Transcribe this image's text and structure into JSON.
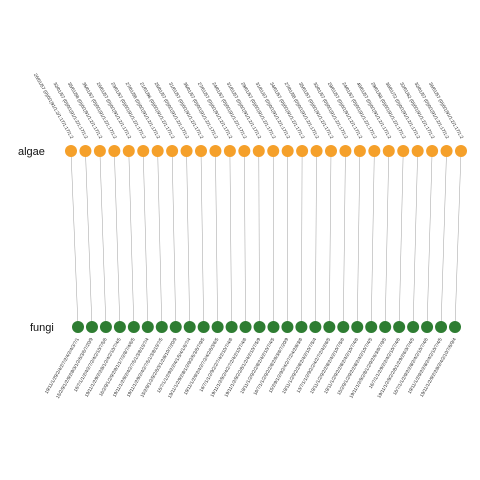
{
  "rows": {
    "top_label": "algae",
    "bottom_label": "fungi"
  },
  "colors": {
    "top_node": "#f5a02a",
    "bottom_node": "#2e7d32",
    "edge": "#9e9e9e"
  },
  "top_nodes": [
    "26/01/57 (0)|0/1|91/1:2/1:17/1:17/1:2",
    "32/01/57 (0)|0/1|91/1:2/1:17/1:2",
    "35/01/58 (0)|0/1|91/1:2/1:17/1:2",
    "35/01/57 (0)|0/1|91/1:2/1:17/1:2",
    "26/01/57 (0)|0/1|91/1:2/1:17/1:2",
    "23/01/57 (0)|0/1|91/1:2/1:17/1:2",
    "27/01/58 (0)|0/1|91/1:2/1:17/1:2",
    "21/01/96 (0)|0/1|91/1:2/1:17/1:2",
    "25/01/57 (0)|0/1|91/1:2/1:17/1:2",
    "31/01/57 (0)|0/1|91/1:2/1:17/1:2",
    "35/01/57 (0)|0/1|91/1:2/1:17/1:2",
    "27/01/57 (0)|0/1|91/1:2/1:17/1:2",
    "24/01/57 (0)|0/1|91/1:2/1:17/1:2",
    "31/01/57 (0)|0/1|91/1:2/1:17/1:2",
    "29/01/57 (0)|0/1|91/1:2/1:17/1:2",
    "31/01/67 (0)|0/1|91/1:2/1:17/1:2",
    "34/01/57 (0)|0/1|91/1:2/1:17/1:2",
    "27/01/58 (0)|0/1|91/1:2/1:17/1:2",
    "35/01/57 (0)|0/1|91/1:2/1:17/1:2",
    "32/01/57 (0)|0/1|91/1:2/1:17/1:2",
    "29/01/57 (0)|0/1|91/1:2/1:17/1:2",
    "24/01/57 (0)|0/1|91/1:2/1:17/1:2",
    "40/01/57 (0)|0/1|91/1:2/1:17/1:2",
    "29/01/58 (0)|0/1|91/1:2/1:17/1:2",
    "30/01/72 (0)|0/1|91/1:2/1:17/1:2",
    "32/01/62 (0)|0/1|91/1:2/1:17/1:2",
    "32/01/57 (0)|0/1|91/1:2/1:17/1:2",
    "36/01/57 (0)|0/1|91/1:2/1:17/1:2"
  ],
  "bottom_nodes": [
    "19/11/1/29/2/4/2/7/2/4/2/4/3/7/1",
    "15/2/9/1/2/9/2/8/3/1/2/6/3/6/7/20/9",
    "16/7/1/1/2/4/2/7/2/4/2/10/7/5/6",
    "19/11/1/2/9/2/2/8/1/2/4/2/10/7/4/5",
    "16/2/9/1/2/9/2/8/1/1/7/2/8/7/4/6/5",
    "19/11/1/2/9/2/4/2/7/5/1/3/8/10/7/4",
    "19/11/1/2/9/2/4/2/7/5/1/3/8/10/7/5",
    "15/2/9/1/2/9/2/6/3/1/2/8/10/7/20/9",
    "16/7/1/1/2/9/2/2/4/1/5/4/1/6/7/4",
    "19/11/1/2/9/2/8/1/2/9/2/6/3/6/7/9/5",
    "19/11/1/2/9/2/4/2/7/2/4/2/6/3/6/5",
    "16/7/1/1/2/9/2/2/7/4/2/10/7/4/6",
    "19/11/1/2/9/2/4/2/7/2/4/2/10/7/4/6",
    "19/11/1/2/9/2/2/8/1/2/4/2/10/7/5/9",
    "19/11/1/2/9/2/2/8/2/4/2/10/7/4/5",
    "16/7/1/1/2/9/2/2/8/2/6/3/6/7/20/9",
    "15/2/9/1/2/9/2/4/2/7/2/4/2/8/3/6",
    "19/11/1/2/9/2/2/8/2/4/2/10/7/5/4",
    "13/7/1/1/2/9/2/2/4/2/7/2/4/2/6/5",
    "19/11/1/2/9/2/2/8/2/4/2/10/7/5/6",
    "19/11/1/2/9/2/2/8/2/4/2/10/7/4/6",
    "15/2/9/1/2/9/2/2/8/2/4/2/10/7/4/5",
    "19/11/1/2/9/2/8/1/2/9/2/6/3/6/7/9/5",
    "16/7/1/1/2/9/2/2/4/2/10/7/4/6",
    "19/11/1/2/9/2/2/8/1/2/9/2/6/3/7/4/5",
    "16/7/1/1/2/9/2/2/8/2/4/2/10/7/4/6",
    "19/11/1/2/9/2/2/8/2/4/2/10/7/4/5",
    "19/11/1/2/9/2/2/8/2/4/2/10/7/6/9/4"
  ],
  "edges": [
    [
      0,
      0
    ],
    [
      1,
      1
    ],
    [
      2,
      2
    ],
    [
      3,
      3
    ],
    [
      4,
      4
    ],
    [
      5,
      5
    ],
    [
      6,
      6
    ],
    [
      7,
      7
    ],
    [
      8,
      8
    ],
    [
      9,
      9
    ],
    [
      10,
      10
    ],
    [
      11,
      11
    ],
    [
      12,
      12
    ],
    [
      13,
      13
    ],
    [
      14,
      14
    ],
    [
      15,
      15
    ],
    [
      16,
      16
    ],
    [
      17,
      17
    ],
    [
      18,
      18
    ],
    [
      19,
      19
    ],
    [
      20,
      20
    ],
    [
      21,
      21
    ],
    [
      22,
      22
    ],
    [
      23,
      23
    ],
    [
      24,
      24
    ],
    [
      25,
      25
    ],
    [
      26,
      26
    ],
    [
      27,
      27
    ]
  ]
}
